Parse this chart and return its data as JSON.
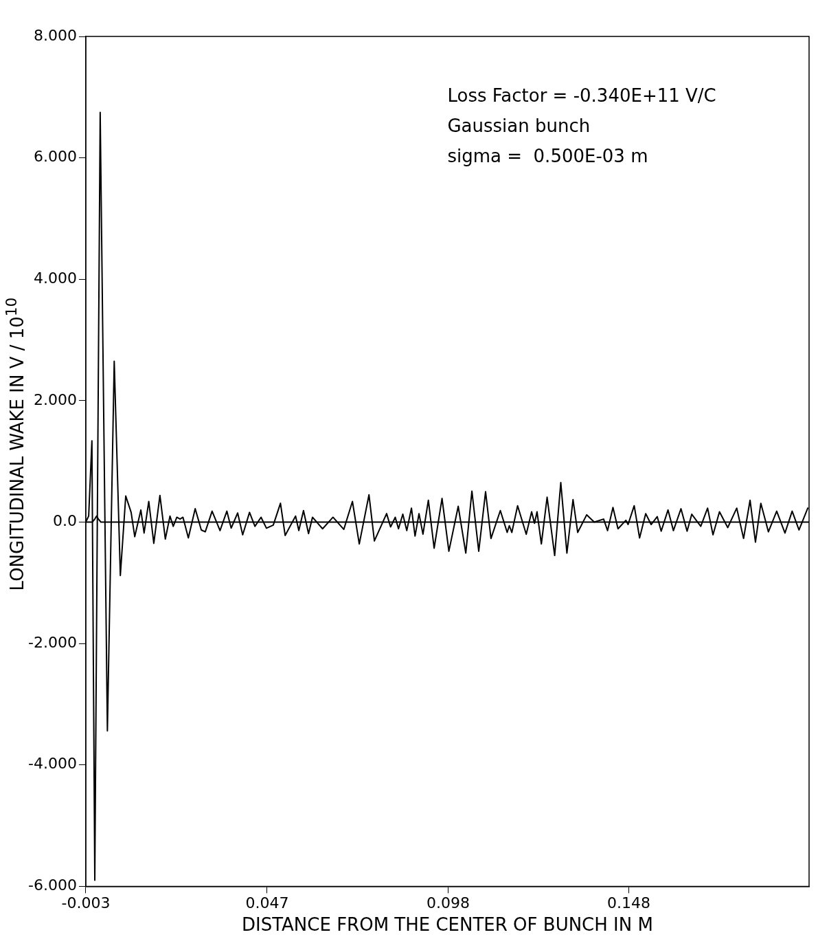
{
  "chart_data": {
    "type": "line",
    "xlabel": "DISTANCE FROM THE CENTER OF BUNCH IN M",
    "ylabel": "LONGITUDINAL WAKE IN V / 10$^{10}$",
    "annotations": [
      "Loss Factor = -0.340E+11 V/C",
      "Gaussian bunch",
      "sigma =  0.500E-03 m"
    ],
    "xlim": [
      -0.003,
      0.198
    ],
    "xticks": [
      -0.003,
      {
        "value": 0.0474,
        "label": "0.047"
      },
      {
        "value": 0.0977,
        "label": "0.098"
      },
      {
        "value": 0.1479,
        "label": "0.148"
      }
    ],
    "ylim": [
      -6,
      8
    ],
    "yticks": [
      {
        "value": -6,
        "label": "-6.000"
      },
      {
        "value": -4,
        "label": "-4.000"
      },
      {
        "value": -2,
        "label": "-2.000"
      },
      {
        "value": 0,
        "label": "0.0"
      },
      {
        "value": 2,
        "label": "2.000"
      },
      {
        "value": 4,
        "label": "4.000"
      },
      {
        "value": 6,
        "label": "6.000"
      },
      {
        "value": 8,
        "label": "8.000"
      }
    ],
    "legend": false,
    "marker": "none",
    "line_style": "solid",
    "series": [
      {
        "color": "#000000",
        "x": [
          -0.003,
          -0.0022,
          -0.0013,
          -0.0005,
          0.001,
          0.003,
          0.0049,
          0.0066,
          0.0081,
          0.0096,
          0.0106,
          0.0123,
          0.0132,
          0.0145,
          0.0159,
          0.0176,
          0.0191,
          0.0204,
          0.0213,
          0.0223,
          0.0232,
          0.024,
          0.0255,
          0.0274,
          0.0291,
          0.0302,
          0.0321,
          0.0343,
          0.0362,
          0.0374,
          0.0392,
          0.0406,
          0.0425,
          0.044,
          0.0457,
          0.0472,
          0.0491,
          0.0511,
          0.0524,
          0.0553,
          0.0562,
          0.0575,
          0.0589,
          0.06,
          0.0628,
          0.0657,
          0.0687,
          0.0711,
          0.073,
          0.0757,
          0.0772,
          0.0806,
          0.0817,
          0.083,
          0.0839,
          0.0851,
          0.0862,
          0.0875,
          0.0885,
          0.0896,
          0.0907,
          0.0922,
          0.0938,
          0.096,
          0.0979,
          0.1005,
          0.1026,
          0.1043,
          0.1062,
          0.1081,
          0.1096,
          0.1122,
          0.1141,
          0.1147,
          0.1154,
          0.117,
          0.1194,
          0.1209,
          0.1217,
          0.1224,
          0.1236,
          0.1252,
          0.1273,
          0.129,
          0.1307,
          0.1324,
          0.1337,
          0.1362,
          0.1383,
          0.1409,
          0.142,
          0.1435,
          0.1449,
          0.1471,
          0.1477,
          0.1494,
          0.1509,
          0.1526,
          0.1541,
          0.1558,
          0.1569,
          0.1588,
          0.1603,
          0.1624,
          0.1641,
          0.1654,
          0.1679,
          0.1698,
          0.1713,
          0.1731,
          0.1754,
          0.1779,
          0.1798,
          0.1816,
          0.1831,
          0.1846,
          0.1867,
          0.189,
          0.1913,
          0.1933,
          0.1952,
          0.1977
        ],
        "values": [
          0,
          0.1,
          1.34,
          -5.9,
          6.75,
          -3.44,
          2.65,
          -0.88,
          0.43,
          0.16,
          -0.24,
          0.2,
          -0.18,
          0.34,
          -0.35,
          0.44,
          -0.28,
          0.1,
          -0.07,
          0.08,
          0.05,
          0.08,
          -0.26,
          0.22,
          -0.13,
          -0.16,
          0.18,
          -0.14,
          0.18,
          -0.1,
          0.15,
          -0.21,
          0.16,
          -0.07,
          0.08,
          -0.1,
          -0.05,
          0.31,
          -0.22,
          0.1,
          -0.14,
          0.19,
          -0.19,
          0.08,
          -0.11,
          0.08,
          -0.12,
          0.34,
          -0.36,
          0.45,
          -0.31,
          0.14,
          -0.08,
          0.08,
          -0.11,
          0.13,
          -0.14,
          0.23,
          -0.23,
          0.14,
          -0.2,
          0.36,
          -0.43,
          0.39,
          -0.48,
          0.26,
          -0.51,
          0.51,
          -0.48,
          0.5,
          -0.27,
          0.19,
          -0.17,
          -0.06,
          -0.17,
          0.27,
          -0.2,
          0.17,
          -0.02,
          0.17,
          -0.36,
          0.41,
          -0.55,
          0.65,
          -0.51,
          0.37,
          -0.17,
          0.12,
          0,
          0.05,
          -0.14,
          0.24,
          -0.11,
          0.03,
          -0.04,
          0.27,
          -0.26,
          0.14,
          -0.04,
          0.09,
          -0.15,
          0.2,
          -0.14,
          0.22,
          -0.15,
          0.13,
          -0.07,
          0.23,
          -0.21,
          0.17,
          -0.09,
          0.23,
          -0.27,
          0.36,
          -0.33,
          0.31,
          -0.16,
          0.18,
          -0.18,
          0.18,
          -0.13,
          0.24
        ]
      },
      {
        "color": "#000000",
        "x": [
          -0.003,
          -0.0012,
          -0.0005,
          0,
          0.0005,
          0.0012,
          0.198
        ],
        "values": [
          0,
          0,
          0.05,
          0.1,
          0.05,
          0,
          0
        ]
      }
    ]
  }
}
